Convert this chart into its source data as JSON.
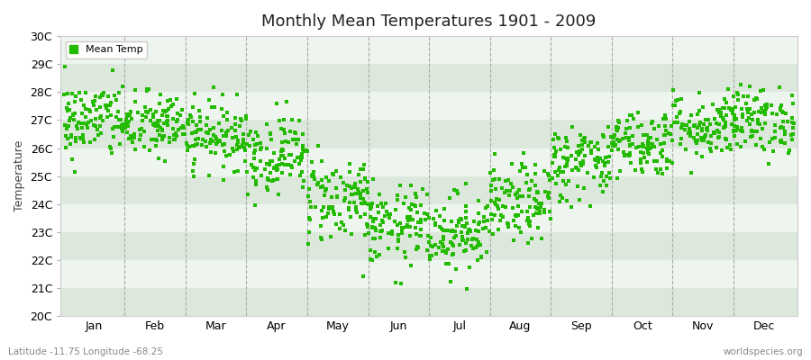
{
  "title": "Monthly Mean Temperatures 1901 - 2009",
  "ylabel": "Temperature",
  "subtitle_left": "Latitude -11.75 Longitude -68.25",
  "subtitle_right": "worldspecies.org",
  "legend_label": "Mean Temp",
  "marker_color": "#22bb00",
  "marker_size": 3,
  "bg_color": "#ffffff",
  "plot_bg_color": "#ffffff",
  "band_color_dark": "#dde8dd",
  "band_color_light": "#eef4ee",
  "yticks": [
    20,
    21,
    22,
    23,
    24,
    25,
    26,
    27,
    28,
    29,
    30
  ],
  "ylim": [
    20,
    30
  ],
  "months": [
    "Jan",
    "Feb",
    "Mar",
    "Apr",
    "May",
    "Jun",
    "Jul",
    "Aug",
    "Sep",
    "Oct",
    "Nov",
    "Dec"
  ],
  "month_means": [
    27.0,
    26.8,
    26.5,
    25.8,
    24.2,
    23.2,
    23.0,
    24.0,
    25.5,
    26.2,
    26.8,
    27.0
  ],
  "month_stds": [
    0.7,
    0.6,
    0.6,
    0.7,
    0.8,
    0.7,
    0.7,
    0.7,
    0.7,
    0.6,
    0.6,
    0.6
  ],
  "n_years": 109,
  "seed": 42
}
